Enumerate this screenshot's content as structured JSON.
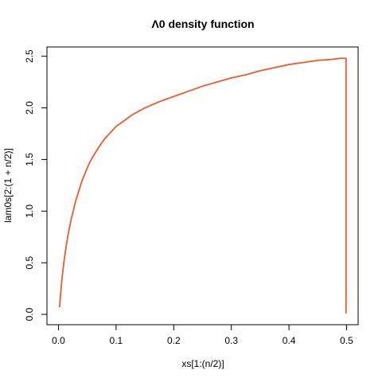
{
  "chart_data": {
    "type": "line",
    "title": "Λ0 density function",
    "xlabel": "xs[1:(n/2)]",
    "ylabel": "lam0s[2:(1 + n/2)]",
    "xlim": [
      -0.02,
      0.52
    ],
    "ylim": [
      -0.1,
      2.59
    ],
    "x_ticks": [
      0.0,
      0.1,
      0.2,
      0.3,
      0.4,
      0.5
    ],
    "x_tick_labels": [
      "0.0",
      "0.1",
      "0.2",
      "0.3",
      "0.4",
      "0.5"
    ],
    "y_ticks": [
      0.0,
      0.5,
      1.0,
      1.5,
      2.0,
      2.5
    ],
    "y_tick_labels": [
      "0.0",
      "0.5",
      "1.0",
      "1.5",
      "2.0",
      "2.5"
    ],
    "grid": false,
    "series": [
      {
        "color": "#f05a2a",
        "x": [
          0.002,
          0.004,
          0.006,
          0.008,
          0.01,
          0.012,
          0.015,
          0.018,
          0.022,
          0.026,
          0.03,
          0.035,
          0.04,
          0.045,
          0.05,
          0.055,
          0.06,
          0.07,
          0.08,
          0.09,
          0.1,
          0.11,
          0.12,
          0.13,
          0.14,
          0.15,
          0.175,
          0.2,
          0.225,
          0.25,
          0.275,
          0.3,
          0.325,
          0.35,
          0.375,
          0.4,
          0.425,
          0.45,
          0.475,
          0.49,
          0.499,
          0.499
        ],
        "y": [
          0.07,
          0.22,
          0.34,
          0.44,
          0.53,
          0.61,
          0.72,
          0.81,
          0.92,
          1.01,
          1.1,
          1.19,
          1.28,
          1.35,
          1.42,
          1.48,
          1.53,
          1.62,
          1.7,
          1.76,
          1.82,
          1.86,
          1.9,
          1.94,
          1.97,
          2.0,
          2.06,
          2.11,
          2.16,
          2.21,
          2.25,
          2.29,
          2.32,
          2.36,
          2.39,
          2.42,
          2.44,
          2.46,
          2.47,
          2.48,
          2.48,
          0.01
        ]
      }
    ]
  }
}
